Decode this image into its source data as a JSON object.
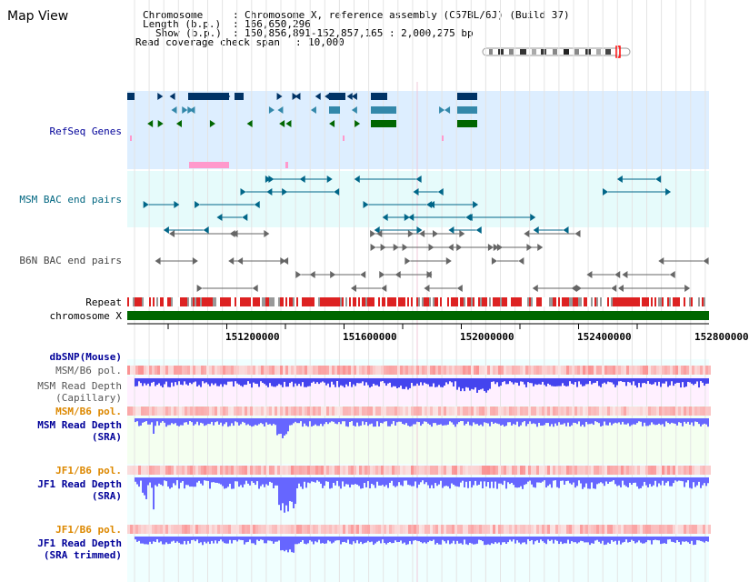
{
  "page": {
    "title": "Map View"
  },
  "header": {
    "chromosome_label": "Chromosome",
    "chromosome_value": "Chromosome X, reference assembly (C57BL/6J) (Build 37)",
    "length_label": "Length (b.p.)",
    "length_value": "166,650,296",
    "show_label": "Show (b.p.)",
    "show_value": "150,856,891-152,857,165 : 2,000,275 bp",
    "coverage_label": "Read coverage check span",
    "coverage_value": "10,000"
  },
  "tracks": {
    "refseq": "RefSeq Genes",
    "msm_bac": "MSM BAC end pairs",
    "b6n_bac": "B6N BAC end pairs",
    "repeat": "Repeat",
    "chromosome": "chromosome X",
    "dbsnp": "dbSNP(Mouse)",
    "msm_b6_pol": "MSM/B6 pol.",
    "msm_depth_cap_1": "MSM Read Depth",
    "msm_depth_cap_2": "(Capillary)",
    "msm_b6_pol_2": "MSM/B6 pol.",
    "msm_depth_sra_1": "MSM Read Depth",
    "msm_depth_sra_2": "(SRA)",
    "jf1_b6_pol": "JF1/B6 pol.",
    "jf1_depth_sra_1": "JF1 Read Depth",
    "jf1_depth_sra_2": "(SRA)",
    "jf1_b6_pol_2": "JF1/B6 pol.",
    "jf1_depth_trim_1": "JF1 Read Depth",
    "jf1_depth_trim_2": "(SRA trimmed)"
  },
  "axis": {
    "ticks": [
      "151200000",
      "151600000",
      "152000000",
      "152400000",
      "152800000"
    ]
  },
  "colors": {
    "refseq_dark": "#003366",
    "refseq_mid": "#3388aa",
    "refseq_green": "#006600",
    "refseq_pink": "#ff99cc",
    "msm_bac": "#006688",
    "b6n_bac": "#666666",
    "repeat": "#dd2222",
    "chromosome": "#006600",
    "depth_blue": "#6666ff",
    "label_blue": "#000099",
    "label_orange": "#dd8800",
    "label_teal": "#006680"
  }
}
